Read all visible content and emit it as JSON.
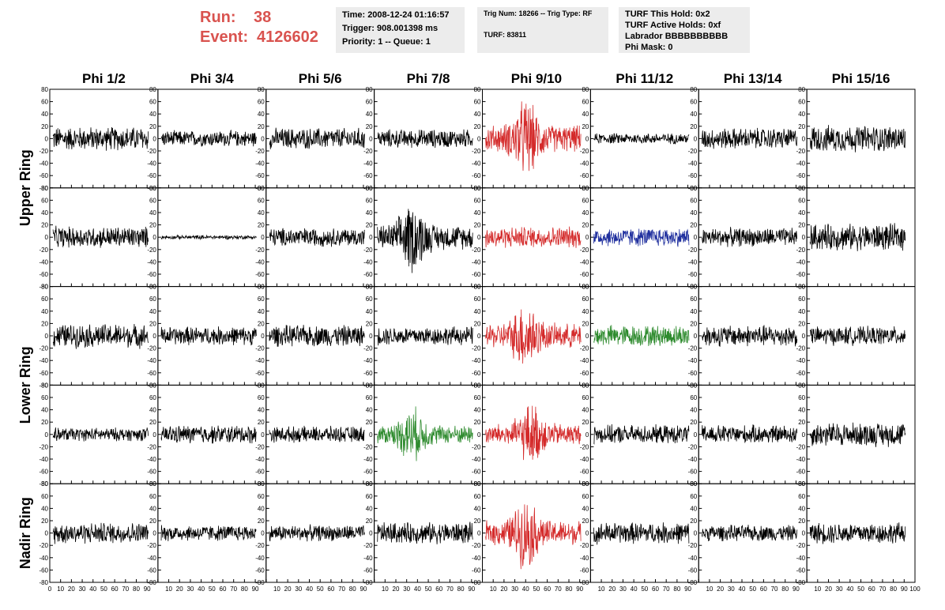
{
  "header": {
    "run_label": "Run:",
    "run_value": "38",
    "event_label": "Event:",
    "event_value": "4126602"
  },
  "info_box_1": {
    "time": "Time: 2008-12-24 01:16:57",
    "trigger": "Trigger: 908.001398 ms",
    "priority": "Priority: 1 -- Queue: 1"
  },
  "info_box_2": {
    "trig": "Trig Num: 18266 -- Trig Type: RF",
    "turf": "TURF: 83811"
  },
  "info_box_3": {
    "hold": "TURF This Hold: 0x2",
    "active_holds": "TURF Active Holds: 0xf",
    "labrador": "Labrador BBBBBBBBBB",
    "phi_mask": "Phi Mask: 0"
  },
  "chart_data": {
    "type": "line",
    "columns": [
      "Phi 1/2",
      "Phi 3/4",
      "Phi 5/6",
      "Phi 7/8",
      "Phi 9/10",
      "Phi 11/12",
      "Phi 13/14",
      "Phi 15/16"
    ],
    "ring_labels": [
      "Upper Ring",
      "Lower Ring",
      "Nadir Ring"
    ],
    "rows": 5,
    "xlim": [
      0,
      100
    ],
    "ylim": [
      -80,
      80
    ],
    "x_ticks": [
      0,
      10,
      20,
      30,
      40,
      50,
      60,
      70,
      80,
      90,
      100
    ],
    "x_tick_labels": [
      "0",
      "10",
      "20",
      "30",
      "40",
      "50",
      "60",
      "70",
      "80",
      "90",
      "100"
    ],
    "y_ticks": [
      80,
      60,
      40,
      20,
      0,
      -20,
      -40,
      -60,
      -80
    ],
    "y_tick_labels": [
      "80",
      "60",
      "40",
      "20",
      "0",
      "-20",
      "-40",
      "-60",
      "-80"
    ],
    "colors": {
      "default": "#000000",
      "red": "#d42a2a",
      "blue": "#1f2f9e",
      "green": "#2e8b2e"
    },
    "panels": [
      [
        {
          "amp": 18,
          "color": "default"
        },
        {
          "amp": 12,
          "color": "default"
        },
        {
          "amp": 16,
          "color": "default"
        },
        {
          "amp": 14,
          "color": "default"
        },
        {
          "amp": 20,
          "color": "red",
          "burst": 40
        },
        {
          "amp": 8,
          "color": "default"
        },
        {
          "amp": 16,
          "color": "default"
        },
        {
          "amp": 20,
          "color": "default"
        }
      ],
      [
        {
          "amp": 16,
          "color": "default"
        },
        {
          "amp": 3,
          "color": "default"
        },
        {
          "amp": 14,
          "color": "default"
        },
        {
          "amp": 18,
          "color": "default",
          "burst": 35
        },
        {
          "amp": 16,
          "color": "red"
        },
        {
          "amp": 14,
          "color": "blue"
        },
        {
          "amp": 14,
          "color": "default"
        },
        {
          "amp": 20,
          "color": "default"
        }
      ],
      [
        {
          "amp": 18,
          "color": "default"
        },
        {
          "amp": 14,
          "color": "default"
        },
        {
          "amp": 16,
          "color": "default"
        },
        {
          "amp": 14,
          "color": "default"
        },
        {
          "amp": 18,
          "color": "red",
          "burst": 40
        },
        {
          "amp": 16,
          "color": "green"
        },
        {
          "amp": 16,
          "color": "default"
        },
        {
          "amp": 14,
          "color": "default"
        }
      ],
      [
        {
          "amp": 10,
          "color": "default"
        },
        {
          "amp": 14,
          "color": "default"
        },
        {
          "amp": 12,
          "color": "default"
        },
        {
          "amp": 14,
          "color": "green",
          "burst": 35
        },
        {
          "amp": 16,
          "color": "red",
          "burst": 45
        },
        {
          "amp": 14,
          "color": "default"
        },
        {
          "amp": 14,
          "color": "default"
        },
        {
          "amp": 18,
          "color": "default"
        }
      ],
      [
        {
          "amp": 16,
          "color": "default"
        },
        {
          "amp": 12,
          "color": "default"
        },
        {
          "amp": 12,
          "color": "default"
        },
        {
          "amp": 16,
          "color": "default"
        },
        {
          "amp": 18,
          "color": "red",
          "burst": 40
        },
        {
          "amp": 16,
          "color": "default"
        },
        {
          "amp": 12,
          "color": "default"
        },
        {
          "amp": 16,
          "color": "default"
        }
      ]
    ]
  }
}
